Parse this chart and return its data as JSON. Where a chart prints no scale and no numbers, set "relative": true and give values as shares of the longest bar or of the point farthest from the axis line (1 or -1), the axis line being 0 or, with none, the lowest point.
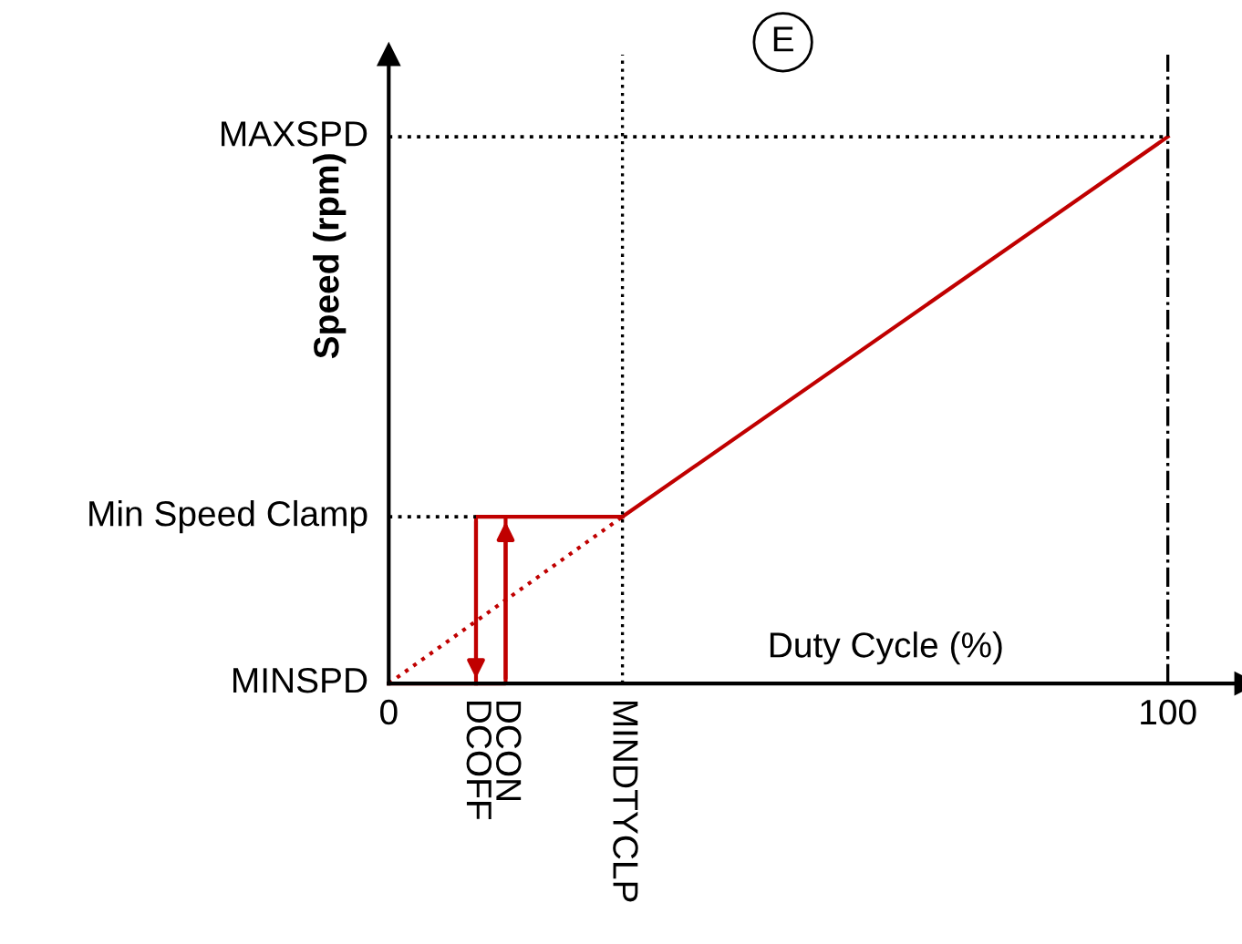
{
  "chart_data": {
    "type": "line",
    "relative": true,
    "xlabel": "Duty Cycle (%)",
    "ylabel": "Speed (rpm)",
    "annotations": [
      "E",
      {
        "text": "MINSPD",
        "x": 0,
        "y": 0
      },
      {
        "text": "DCOFF",
        "x": 11.2,
        "y": 0
      },
      {
        "text": "DCON",
        "x": 15,
        "y": 0
      },
      {
        "text": "MINDTYCLP",
        "x": 30,
        "y": 0
      }
    ],
    "xlim": [
      0,
      110
    ],
    "xticks": [
      0,
      100
    ],
    "series": [
      {
        "color": "#c00000",
        "x": [
          30,
          100
        ],
        "values": [
          0.305,
          1
        ]
      },
      {
        "color": "#c00000",
        "x": [
          0,
          30
        ],
        "values": [
          0,
          0.305
        ],
        "line_style": "dotted"
      },
      {
        "color": "#c00000",
        "x": [
          0,
          15,
          15
        ],
        "values": [
          0,
          0,
          0.305
        ]
      },
      {
        "color": "#c00000",
        "x": [
          30,
          11.2,
          11.2
        ],
        "values": [
          0.305,
          0.305,
          0
        ]
      }
    ],
    "ref_lines": [
      {
        "axis": "y",
        "value": 1,
        "label": "MAXSPD",
        "color": "#000000",
        "line_style": "dotted"
      },
      {
        "axis": "y",
        "value": 0.305,
        "label": "Min Speed Clamp",
        "color": "#000000",
        "line_style": "dotted"
      },
      {
        "axis": "x",
        "value": 100,
        "color": "#000000",
        "line_style": "dashdot"
      },
      {
        "axis": "x",
        "value": 30,
        "color": "#000000",
        "line_style": "dotted"
      }
    ]
  }
}
